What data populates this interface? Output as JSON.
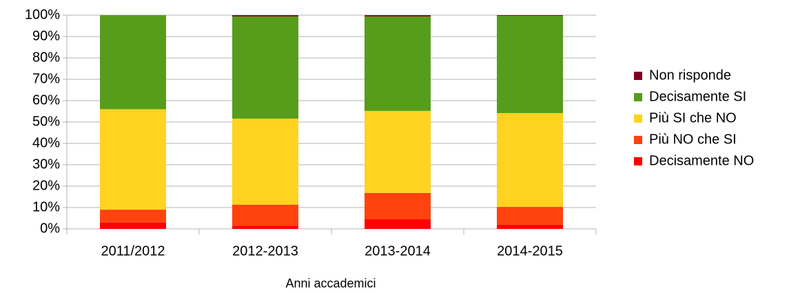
{
  "chart_data": {
    "type": "stacked_bar",
    "x_label": "Anni accademici",
    "categories": [
      "2011/2012",
      "2012-2013",
      "2013-2014",
      "2014-2015"
    ],
    "series": [
      {
        "name": "Decisamente NO",
        "color": "#ff0000",
        "values": [
          3,
          1.5,
          4.5,
          2
        ]
      },
      {
        "name": "Più NO che SI",
        "color": "#ff420e",
        "values": [
          6,
          9.8,
          12.3,
          8.3
        ]
      },
      {
        "name": "Più SI che NO",
        "color": "#ffd320",
        "values": [
          47,
          40.3,
          38.4,
          43.9
        ]
      },
      {
        "name": "Decisamente SI",
        "color": "#579d1c",
        "values": [
          44,
          47.8,
          44.2,
          45.5
        ]
      },
      {
        "name": "Non risponde",
        "color": "#7e0021",
        "values": [
          0,
          0.6,
          0.6,
          0.3
        ]
      }
    ],
    "ylim": [
      0,
      100
    ],
    "yticks": [
      {
        "value": 0,
        "label": "0%"
      },
      {
        "value": 10,
        "label": "10%"
      },
      {
        "value": 20,
        "label": "20%"
      },
      {
        "value": 30,
        "label": "30%"
      },
      {
        "value": 40,
        "label": "40%"
      },
      {
        "value": 50,
        "label": "50%"
      },
      {
        "value": 60,
        "label": "60%"
      },
      {
        "value": 70,
        "label": "70%"
      },
      {
        "value": 80,
        "label": "80%"
      },
      {
        "value": 90,
        "label": "90%"
      },
      {
        "value": 100,
        "label": "100%"
      }
    ],
    "grid": true,
    "legend": "right"
  }
}
